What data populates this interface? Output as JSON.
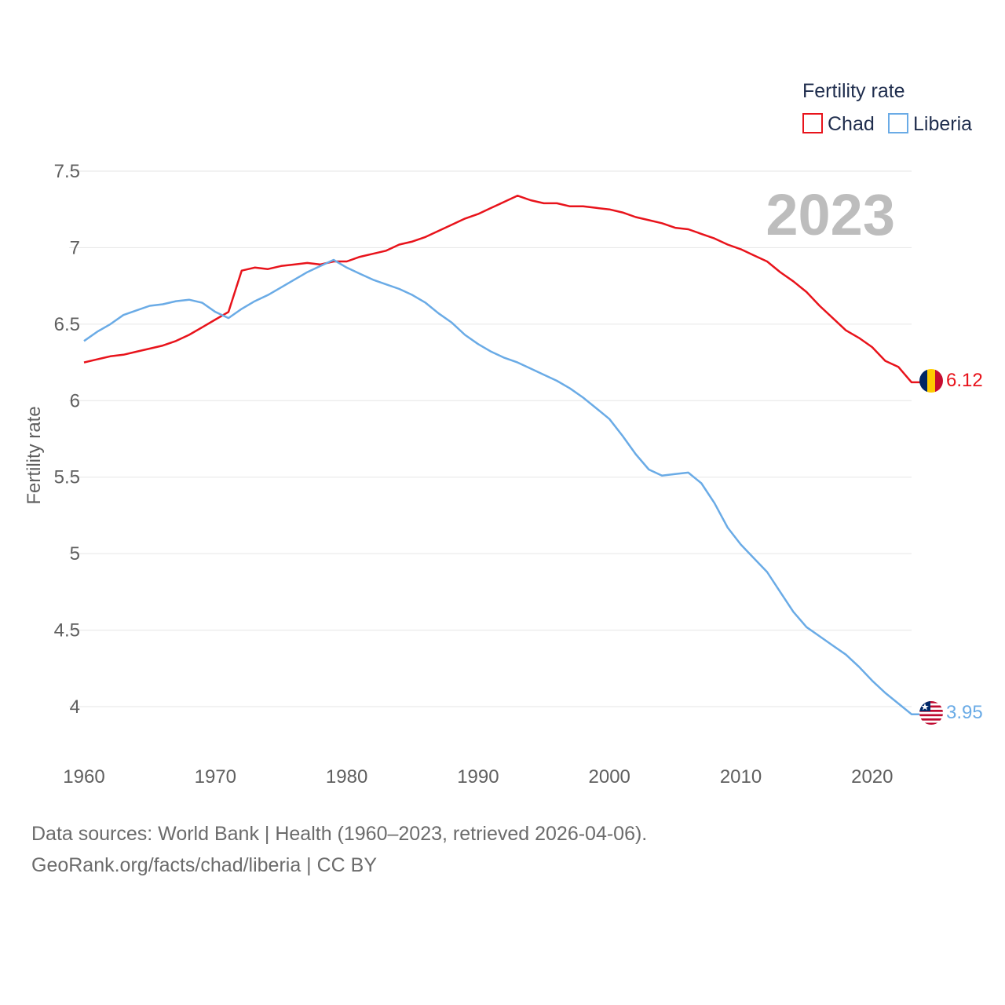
{
  "chart_data": {
    "type": "line",
    "legend_title": "Fertility rate",
    "ylabel": "Fertility rate",
    "xlabel": "",
    "current_year": "2023",
    "ylim": [
      3.7,
      7.5
    ],
    "xlim": [
      1960,
      2023
    ],
    "yticks": [
      {
        "value": 4,
        "label": "4"
      },
      {
        "value": 4.5,
        "label": "4.5"
      },
      {
        "value": 5,
        "label": "5"
      },
      {
        "value": 5.5,
        "label": "5.5"
      },
      {
        "value": 6,
        "label": "6"
      },
      {
        "value": 6.5,
        "label": "6.5"
      },
      {
        "value": 7,
        "label": "7"
      },
      {
        "value": 7.5,
        "label": "7.5"
      }
    ],
    "xticks": [
      {
        "value": 1960,
        "label": "1960"
      },
      {
        "value": 1970,
        "label": "1970"
      },
      {
        "value": 1980,
        "label": "1980"
      },
      {
        "value": 1990,
        "label": "1990"
      },
      {
        "value": 2000,
        "label": "2000"
      },
      {
        "value": 2010,
        "label": "2010"
      },
      {
        "value": 2020,
        "label": "2020"
      }
    ],
    "series": [
      {
        "name": "Chad",
        "color": "#e8131b",
        "end_label": "6.12",
        "flag": "chad-flag",
        "x": [
          1960,
          1961,
          1962,
          1963,
          1964,
          1965,
          1966,
          1967,
          1968,
          1969,
          1970,
          1971,
          1972,
          1973,
          1974,
          1975,
          1976,
          1977,
          1978,
          1979,
          1980,
          1981,
          1982,
          1983,
          1984,
          1985,
          1986,
          1987,
          1988,
          1989,
          1990,
          1991,
          1992,
          1993,
          1994,
          1995,
          1996,
          1997,
          1998,
          1999,
          2000,
          2001,
          2002,
          2003,
          2004,
          2005,
          2006,
          2007,
          2008,
          2009,
          2010,
          2011,
          2012,
          2013,
          2014,
          2015,
          2016,
          2017,
          2018,
          2019,
          2020,
          2021,
          2022,
          2023
        ],
        "values": [
          6.25,
          6.27,
          6.29,
          6.3,
          6.32,
          6.34,
          6.36,
          6.39,
          6.43,
          6.48,
          6.53,
          6.58,
          6.85,
          6.87,
          6.86,
          6.88,
          6.89,
          6.9,
          6.89,
          6.91,
          6.91,
          6.94,
          6.96,
          6.98,
          7.02,
          7.04,
          7.07,
          7.11,
          7.15,
          7.19,
          7.22,
          7.26,
          7.3,
          7.34,
          7.31,
          7.29,
          7.29,
          7.27,
          7.27,
          7.26,
          7.25,
          7.23,
          7.2,
          7.18,
          7.16,
          7.13,
          7.12,
          7.09,
          7.06,
          7.02,
          6.99,
          6.95,
          6.91,
          6.84,
          6.78,
          6.71,
          6.62,
          6.54,
          6.46,
          6.41,
          6.35,
          6.26,
          6.22,
          6.12
        ]
      },
      {
        "name": "Liberia",
        "color": "#6aabe6",
        "end_label": "3.95",
        "flag": "liberia-flag",
        "x": [
          1960,
          1961,
          1962,
          1963,
          1964,
          1965,
          1966,
          1967,
          1968,
          1969,
          1970,
          1971,
          1972,
          1973,
          1974,
          1975,
          1976,
          1977,
          1978,
          1979,
          1980,
          1981,
          1982,
          1983,
          1984,
          1985,
          1986,
          1987,
          1988,
          1989,
          1990,
          1991,
          1992,
          1993,
          1994,
          1995,
          1996,
          1997,
          1998,
          1999,
          2000,
          2001,
          2002,
          2003,
          2004,
          2005,
          2006,
          2007,
          2008,
          2009,
          2010,
          2011,
          2012,
          2013,
          2014,
          2015,
          2016,
          2017,
          2018,
          2019,
          2020,
          2021,
          2022,
          2023
        ],
        "values": [
          6.39,
          6.45,
          6.5,
          6.56,
          6.59,
          6.62,
          6.63,
          6.65,
          6.66,
          6.64,
          6.58,
          6.54,
          6.6,
          6.65,
          6.69,
          6.74,
          6.79,
          6.84,
          6.88,
          6.92,
          6.87,
          6.83,
          6.79,
          6.76,
          6.73,
          6.69,
          6.64,
          6.57,
          6.51,
          6.43,
          6.37,
          6.32,
          6.28,
          6.25,
          6.21,
          6.17,
          6.13,
          6.08,
          6.02,
          5.95,
          5.88,
          5.77,
          5.65,
          5.55,
          5.51,
          5.52,
          5.53,
          5.46,
          5.33,
          5.17,
          5.06,
          4.97,
          4.88,
          4.75,
          4.62,
          4.52,
          4.46,
          4.4,
          4.34,
          4.26,
          4.17,
          4.09,
          4.02,
          3.95
        ]
      }
    ]
  },
  "footer": {
    "sources": "Data sources: World Bank | Health (1960–2023, retrieved 2026-04-06).",
    "credit": "GeoRank.org/facts/chad/liberia | CC BY"
  }
}
